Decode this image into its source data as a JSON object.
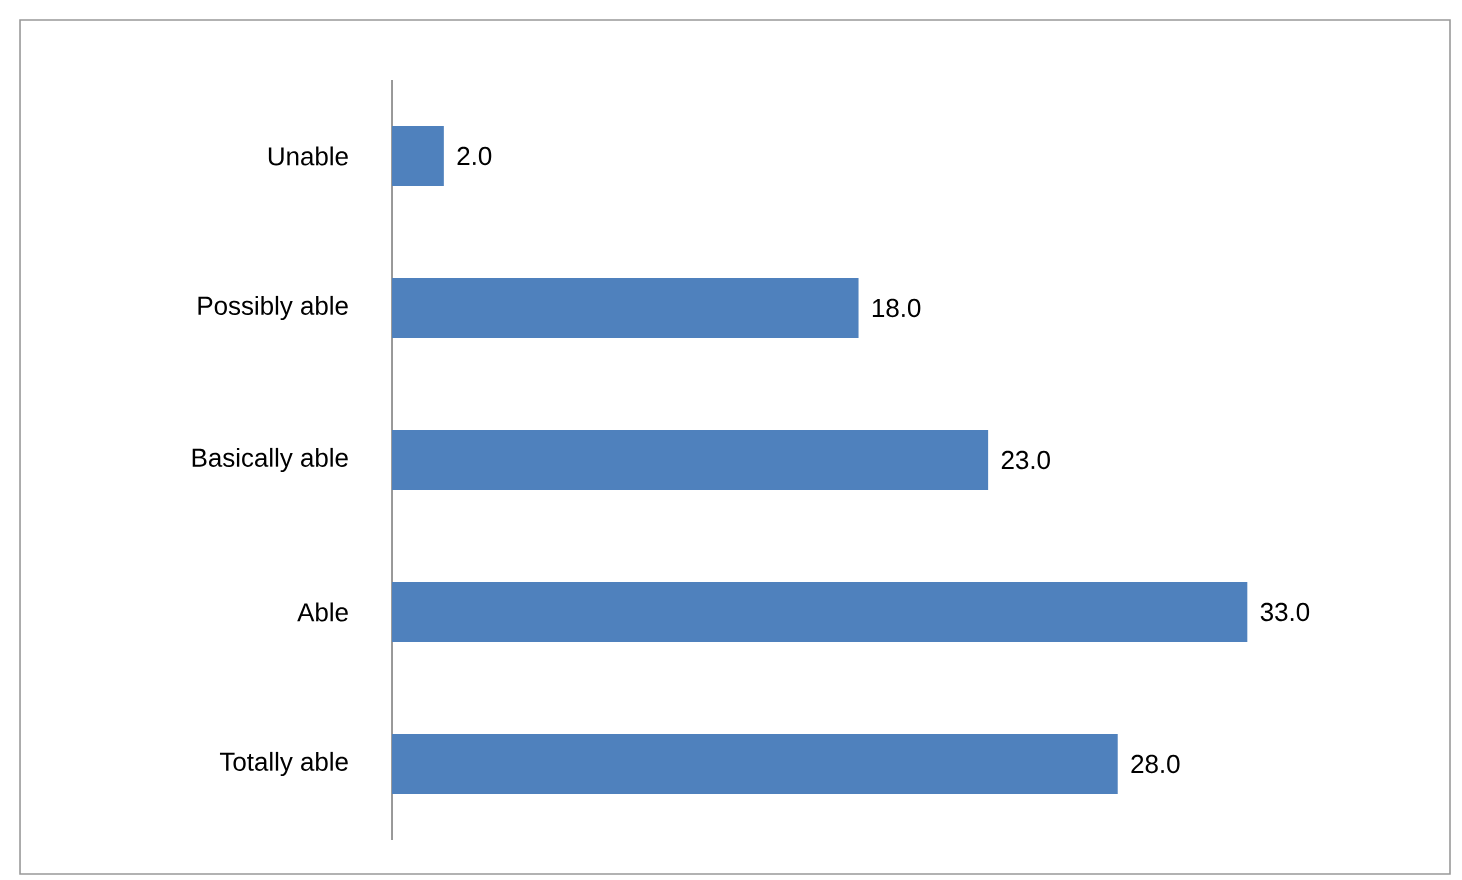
{
  "chart_data": {
    "type": "bar",
    "orientation": "horizontal",
    "categories": [
      "Unable",
      "Possibly able",
      "Basically able",
      "Able",
      "Totally able"
    ],
    "values": [
      2.0,
      18.0,
      23.0,
      33.0,
      28.0
    ],
    "color": "#4f81bd",
    "value_labels": [
      "2.0",
      "18.0",
      "23.0",
      "33.0",
      "28.0"
    ]
  }
}
